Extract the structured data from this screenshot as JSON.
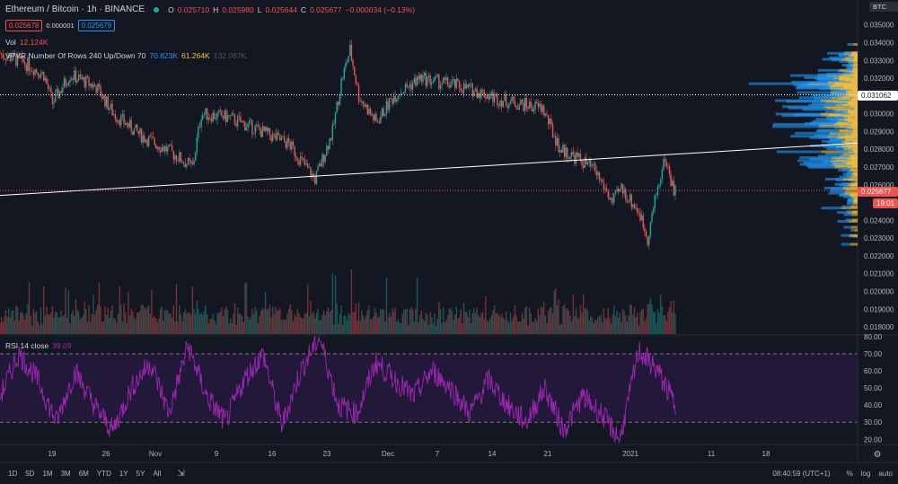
{
  "header": {
    "title": "Ethereum / Bitcoin · 1h · BINANCE",
    "ohlc": {
      "o_label": "O",
      "o": "0.025710",
      "h_label": "H",
      "h": "0.025980",
      "l_label": "L",
      "l": "0.025644",
      "c_label": "C",
      "c": "0.025677",
      "change": "−0.000034 (−0.13%)"
    },
    "bid": "0.025678",
    "spread": "0.000001",
    "ask": "0.025679"
  },
  "indicators": {
    "vol_label": "Vol",
    "vol_value": "12.124K",
    "vpvr_label": "VPVR Number Of Rows 240 Up/Down 70",
    "vpvr_up": "70.823K",
    "vpvr_down": "61.264K",
    "vpvr_total": "132.087K",
    "rsi_label": "RSI 14 close",
    "rsi_value": "39.09"
  },
  "price_axis": {
    "currency": "BTC",
    "ticks": [
      "0.035000",
      "0.034000",
      "0.033000",
      "0.032000",
      "0.030000",
      "0.029000",
      "0.028000",
      "0.027000",
      "0.026000",
      "0.024000",
      "0.023000",
      "0.022000",
      "0.021000",
      "0.020000",
      "0.019000",
      "0.018000"
    ],
    "line_label": "0.031062",
    "last_price": "0.025677",
    "countdown": "19:01"
  },
  "rsi_axis": {
    "ticks": [
      "80.00",
      "70.00",
      "60.00",
      "50.00",
      "40.00",
      "30.00",
      "20.00"
    ]
  },
  "time_axis": {
    "ticks": [
      "19",
      "26",
      "Nov",
      "9",
      "16",
      "23",
      "Dec",
      "7",
      "14",
      "21",
      "2021",
      "11",
      "18"
    ]
  },
  "bottom_bar": {
    "ranges": [
      "1D",
      "5D",
      "1M",
      "3M",
      "6M",
      "YTD",
      "1Y",
      "5Y",
      "All"
    ],
    "clock": "08:40:59 (UTC+1)",
    "percent": "%",
    "log": "log",
    "auto": "auto"
  },
  "colors": {
    "up": "#26a69a",
    "down": "#ef5350",
    "rsi": "#9c27b0",
    "vpvr_up": "#2196f3",
    "vpvr_down": "#f5c242",
    "background": "#131722"
  },
  "chart_data": {
    "type": "candlestick",
    "symbol": "ETHBTC",
    "interval": "1h",
    "close_path": [
      [
        "2020-10-14",
        0.0334
      ],
      [
        "2020-10-17",
        0.0328
      ],
      [
        "2020-10-19",
        0.0322
      ],
      [
        "2020-10-20",
        0.0306
      ],
      [
        "2020-10-22",
        0.0322
      ],
      [
        "2020-10-25",
        0.0315
      ],
      [
        "2020-10-27",
        0.03
      ],
      [
        "2020-10-30",
        0.0288
      ],
      [
        "2020-11-02",
        0.028
      ],
      [
        "2020-11-05",
        0.027
      ],
      [
        "2020-11-06",
        0.03
      ],
      [
        "2020-11-09",
        0.0298
      ],
      [
        "2020-11-12",
        0.0292
      ],
      [
        "2020-11-16",
        0.0283
      ],
      [
        "2020-11-19",
        0.0263
      ],
      [
        "2020-11-21",
        0.029
      ],
      [
        "2020-11-22",
        0.0318
      ],
      [
        "2020-11-23",
        0.0336
      ],
      [
        "2020-11-24",
        0.031
      ],
      [
        "2020-11-26",
        0.0295
      ],
      [
        "2020-11-28",
        0.031
      ],
      [
        "2020-12-01",
        0.032
      ],
      [
        "2020-12-03",
        0.0318
      ],
      [
        "2020-12-05",
        0.0316
      ],
      [
        "2020-12-08",
        0.0312
      ],
      [
        "2020-12-10",
        0.0308
      ],
      [
        "2020-12-13",
        0.0305
      ],
      [
        "2020-12-15",
        0.0303
      ],
      [
        "2020-12-17",
        0.028
      ],
      [
        "2020-12-19",
        0.0275
      ],
      [
        "2020-12-21",
        0.0268
      ],
      [
        "2020-12-23",
        0.025
      ],
      [
        "2020-12-24",
        0.0258
      ],
      [
        "2020-12-26",
        0.0245
      ],
      [
        "2020-12-27",
        0.023
      ],
      [
        "2020-12-28",
        0.0255
      ],
      [
        "2020-12-29",
        0.0275
      ],
      [
        "2020-12-30",
        0.025677
      ]
    ],
    "rsi_path": [
      45,
      70,
      55,
      30,
      60,
      40,
      25,
      50,
      65,
      35,
      75,
      45,
      30,
      55,
      70,
      28,
      60,
      80,
      40,
      35,
      65,
      55,
      45,
      60,
      50,
      35,
      55,
      40,
      30,
      50,
      25,
      45,
      35,
      20,
      72,
      60,
      39
    ],
    "trend_line": [
      [
        "2020-10-14",
        0.0254
      ],
      [
        "2021-01-20",
        0.02835
      ]
    ],
    "horizontal_line": 0.031062,
    "price_range": [
      0.0176,
      0.0364
    ],
    "rsi_range": [
      17,
      81
    ],
    "rsi_bands": [
      30,
      70
    ],
    "x_range": [
      "2020-10-14",
      "2021-01-20"
    ]
  }
}
